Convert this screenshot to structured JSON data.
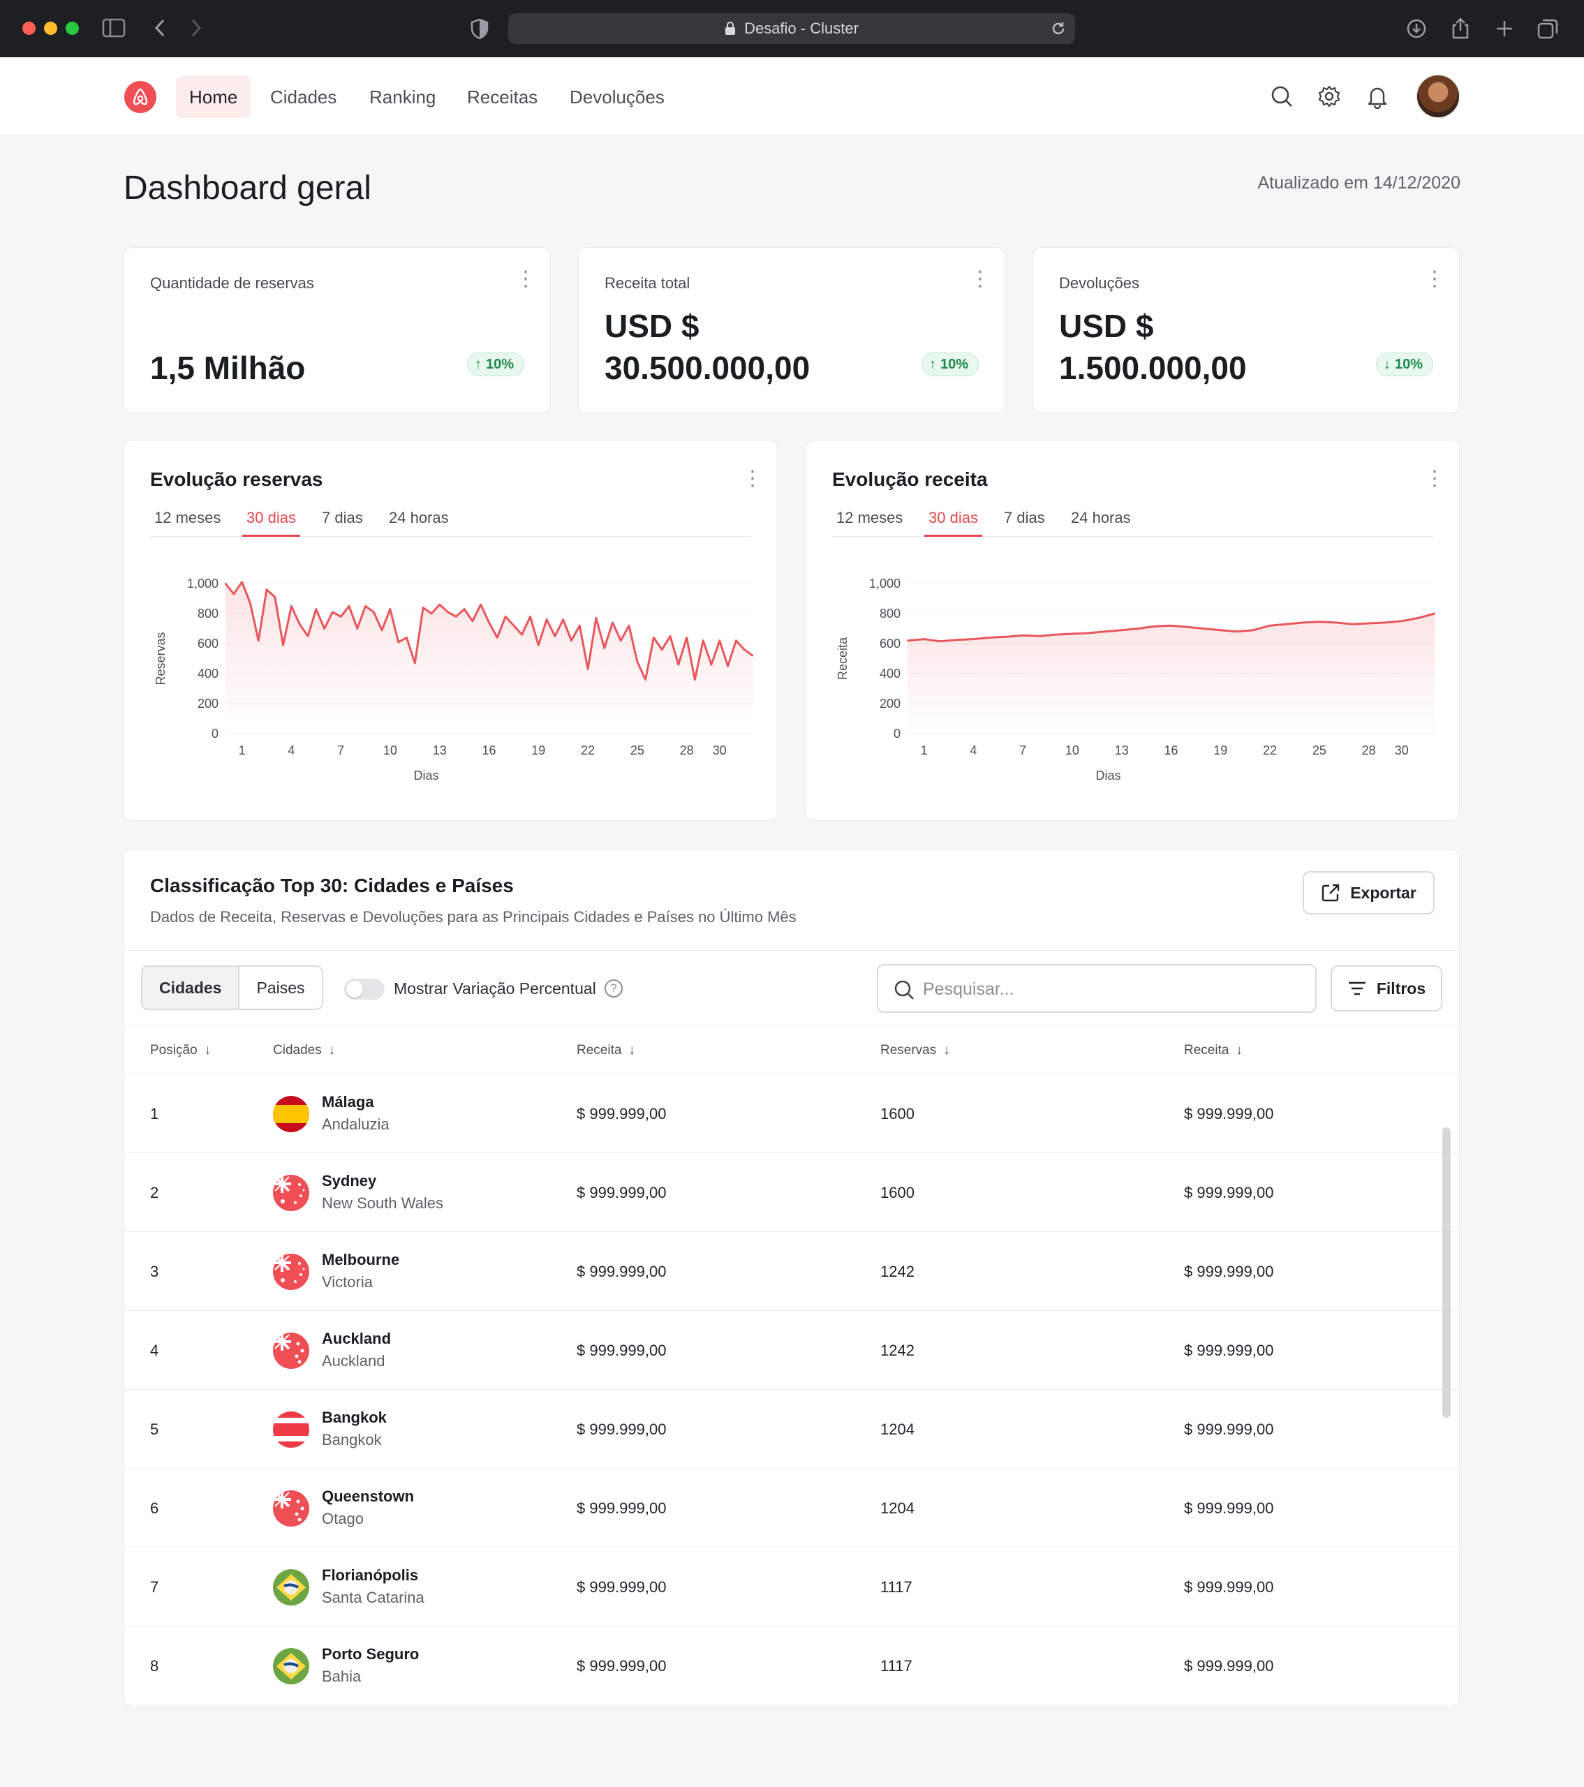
{
  "browser": {
    "url_title": "Desafio - Cluster"
  },
  "nav": {
    "links": [
      "Home",
      "Cidades",
      "Ranking",
      "Receitas",
      "Devoluções"
    ],
    "active": "Home"
  },
  "header": {
    "title": "Dashboard geral",
    "updated": "Atualizado em 14/12/2020"
  },
  "kpis": [
    {
      "label": "Quantidade de reservas",
      "value_line1": "",
      "value_line2": "1,5 Milhão",
      "change": "10%",
      "direction": "up"
    },
    {
      "label": "Receita total",
      "value_line1": "USD $",
      "value_line2": "30.500.000,00",
      "change": "10%",
      "direction": "up"
    },
    {
      "label": "Devoluções",
      "value_line1": "USD $",
      "value_line2": "1.500.000,00",
      "change": "10%",
      "direction": "down"
    }
  ],
  "charts_ui": [
    {
      "title": "Evolução reservas",
      "tabs": [
        "12 meses",
        "30 dias",
        "7 dias",
        "24 horas"
      ],
      "active_tab": "30 dias"
    },
    {
      "title": "Evolução receita",
      "tabs": [
        "12 meses",
        "30 dias",
        "7 dias",
        "24 horas"
      ],
      "active_tab": "30 dias"
    }
  ],
  "chart_data": [
    {
      "type": "line",
      "title": "",
      "xlabel": "Dias",
      "ylabel": "Reservas",
      "ylim": [
        0,
        1000
      ],
      "yticks": [
        "0",
        "200",
        "400",
        "600",
        "800",
        "1,000"
      ],
      "xticks": [
        "1",
        "4",
        "7",
        "10",
        "13",
        "16",
        "19",
        "22",
        "25",
        "28",
        "30"
      ],
      "x": [
        0,
        0.5,
        1,
        1.5,
        2,
        2.5,
        3,
        3.5,
        4,
        4.5,
        5,
        5.5,
        6,
        6.5,
        7,
        7.5,
        8,
        8.5,
        9,
        9.5,
        10,
        10.5,
        11,
        11.5,
        12,
        12.5,
        13,
        13.5,
        14,
        14.5,
        15,
        15.5,
        16,
        16.5,
        17,
        17.5,
        18,
        18.5,
        19,
        19.5,
        20,
        20.5,
        21,
        21.5,
        22,
        22.5,
        23,
        23.5,
        24,
        24.5,
        25,
        25.5,
        26,
        26.5,
        27,
        27.5,
        28,
        28.5,
        29,
        29.5,
        30,
        30.5,
        31,
        31.5,
        32
      ],
      "values": [
        1000,
        930,
        1010,
        870,
        620,
        960,
        910,
        590,
        850,
        730,
        650,
        830,
        700,
        810,
        780,
        850,
        700,
        850,
        810,
        690,
        830,
        610,
        640,
        470,
        840,
        800,
        860,
        810,
        780,
        830,
        750,
        860,
        740,
        640,
        780,
        720,
        660,
        780,
        590,
        760,
        650,
        760,
        620,
        720,
        430,
        770,
        570,
        740,
        620,
        720,
        480,
        360,
        640,
        560,
        650,
        460,
        640,
        360,
        620,
        460,
        620,
        450,
        620,
        560,
        520
      ],
      "color": "#e8575c"
    },
    {
      "type": "line",
      "title": "",
      "xlabel": "Dias",
      "ylabel": "Receita",
      "ylim": [
        0,
        1000
      ],
      "yticks": [
        "0",
        "200",
        "400",
        "600",
        "800",
        "1,000"
      ],
      "xticks": [
        "1",
        "4",
        "7",
        "10",
        "13",
        "16",
        "19",
        "22",
        "25",
        "28",
        "30"
      ],
      "x": [
        0,
        1,
        2,
        3,
        4,
        5,
        6,
        7,
        8,
        9,
        10,
        11,
        12,
        13,
        14,
        15,
        16,
        17,
        18,
        19,
        20,
        21,
        22,
        23,
        24,
        25,
        26,
        27,
        28,
        29,
        30,
        31,
        32
      ],
      "values": [
        620,
        630,
        615,
        625,
        630,
        640,
        645,
        655,
        650,
        660,
        665,
        670,
        680,
        690,
        700,
        715,
        720,
        710,
        700,
        690,
        680,
        690,
        720,
        730,
        740,
        745,
        740,
        730,
        735,
        740,
        750,
        770,
        800
      ],
      "color": "#e8575c"
    }
  ],
  "table": {
    "title": "Classificação Top 30: Cidades e Países",
    "subtitle": "Dados de Receita, Reservas e Devoluções para as Principais Cidades e Países no Último Mês",
    "export_label": "Exportar",
    "segments": [
      "Cidades",
      "Paises"
    ],
    "toggle_label": "Mostrar Variação Percentual",
    "search_placeholder": "Pesquisar...",
    "filter_label": "Filtros",
    "columns": [
      "Posição",
      "Cidades",
      "Receita",
      "Reservas",
      "Receita"
    ],
    "rows": [
      {
        "pos": "1",
        "city": "Málaga",
        "region": "Andaluzia",
        "flag": "es",
        "rev1": "$ 999.999,00",
        "res": "1600",
        "rev2": "$ 999.999,00"
      },
      {
        "pos": "2",
        "city": "Sydney",
        "region": "New South Wales",
        "flag": "au",
        "rev1": "$ 999.999,00",
        "res": "1600",
        "rev2": "$ 999.999,00"
      },
      {
        "pos": "3",
        "city": "Melbourne",
        "region": "Victoria",
        "flag": "au",
        "rev1": "$ 999.999,00",
        "res": "1242",
        "rev2": "$ 999.999,00"
      },
      {
        "pos": "4",
        "city": "Auckland",
        "region": "Auckland",
        "flag": "nz",
        "rev1": "$ 999.999,00",
        "res": "1242",
        "rev2": "$ 999.999,00"
      },
      {
        "pos": "5",
        "city": "Bangkok",
        "region": "Bangkok",
        "flag": "th",
        "rev1": "$ 999.999,00",
        "res": "1204",
        "rev2": "$ 999.999,00"
      },
      {
        "pos": "6",
        "city": "Queenstown",
        "region": "Otago",
        "flag": "nz",
        "rev1": "$ 999.999,00",
        "res": "1204",
        "rev2": "$ 999.999,00"
      },
      {
        "pos": "7",
        "city": "Florianópolis",
        "region": "Santa Catarina",
        "flag": "br",
        "rev1": "$ 999.999,00",
        "res": "1117",
        "rev2": "$ 999.999,00"
      },
      {
        "pos": "8",
        "city": "Porto Seguro",
        "region": "Bahia",
        "flag": "br",
        "rev1": "$ 999.999,00",
        "res": "1117",
        "rev2": "$ 999.999,00"
      }
    ]
  },
  "icons": [
    "shield-icon",
    "lock-icon",
    "reload-icon",
    "download-icon",
    "share-icon",
    "plus-icon",
    "tabs-icon",
    "sidebar-icon",
    "back-icon",
    "forward-icon",
    "search-icon",
    "gear-icon",
    "bell-icon",
    "kebab-icon",
    "arrow-up-icon",
    "arrow-down-icon",
    "external-link-icon",
    "filter-icon",
    "help-icon"
  ],
  "colors": {
    "accent": "#e5484d",
    "positive": "#1c8a4a"
  }
}
